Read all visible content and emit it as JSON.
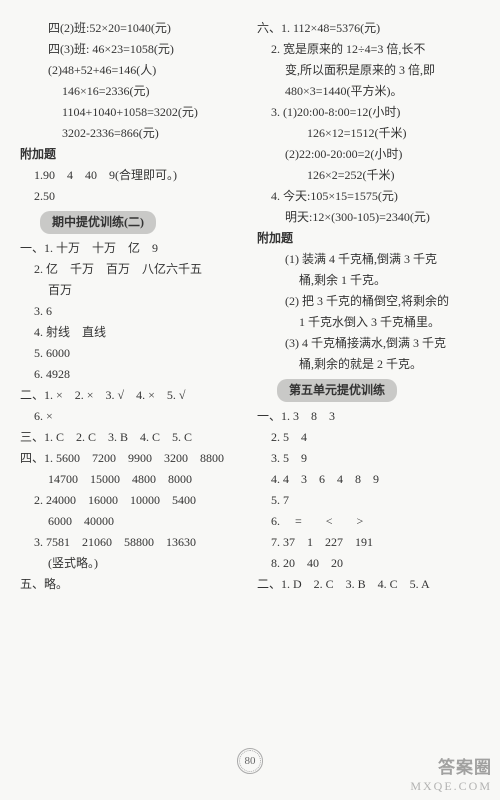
{
  "left": {
    "lines": [
      {
        "cls": "indent2",
        "t": "四(2)班:52×20=1040(元)"
      },
      {
        "cls": "indent2",
        "t": "四(3)班: 46×23=1058(元)"
      },
      {
        "cls": "indent2",
        "t": "(2)48+52+46=146(人)"
      },
      {
        "cls": "indent3",
        "t": "146×16=2336(元)"
      },
      {
        "cls": "indent3",
        "t": "1104+1040+1058=3202(元)"
      },
      {
        "cls": "indent3",
        "t": "3202-2336=866(元)"
      }
    ],
    "fujia_label": "附加题",
    "fujia": [
      {
        "cls": "indent1",
        "t": "1.90　4　40　9(合理即可。)"
      },
      {
        "cls": "indent1",
        "t": "2.50"
      }
    ],
    "section2": "期中提优训练(二)",
    "body2": [
      {
        "cls": "",
        "t": "一、1. 十万　十万　亿　9"
      },
      {
        "cls": "indent1",
        "t": "2. 亿　千万　百万　八亿六千五"
      },
      {
        "cls": "indent2",
        "t": "百万"
      },
      {
        "cls": "indent1",
        "t": "3. 6"
      },
      {
        "cls": "indent1",
        "t": "4. 射线　直线"
      },
      {
        "cls": "indent1",
        "t": "5. 6000"
      },
      {
        "cls": "indent1",
        "t": "6. 4928"
      },
      {
        "cls": "",
        "t": "二、1. ×　2. ×　3. √　4. ×　5. √"
      },
      {
        "cls": "indent1",
        "t": "6. ×"
      },
      {
        "cls": "",
        "t": "三、1. C　2. C　3. B　4. C　5. C"
      },
      {
        "cls": "",
        "t": "四、1. 5600　7200　9900　3200　8800"
      },
      {
        "cls": "indent2",
        "t": "14700　15000　4800　8000"
      },
      {
        "cls": "indent1",
        "t": "2. 24000　16000　10000　5400"
      },
      {
        "cls": "indent2",
        "t": "6000　40000"
      },
      {
        "cls": "indent1",
        "t": "3. 7581　21060　58800　13630"
      },
      {
        "cls": "indent2",
        "t": "(竖式略。)"
      },
      {
        "cls": "",
        "t": "五、略。"
      }
    ]
  },
  "right": {
    "lines": [
      {
        "cls": "",
        "t": "六、1. 112×48=5376(元)"
      },
      {
        "cls": "indent1",
        "t": "2. 宽是原来的 12÷4=3 倍,长不"
      },
      {
        "cls": "indent2",
        "t": "变,所以面积是原来的 3 倍,即"
      },
      {
        "cls": "indent2",
        "t": "480×3=1440(平方米)。"
      },
      {
        "cls": "indent1",
        "t": "3. (1)20:00-8:00=12(小时)"
      },
      {
        "cls": "indent35",
        "t": "126×12=1512(千米)"
      },
      {
        "cls": "indent2",
        "t": "(2)22:00-20:00=2(小时)"
      },
      {
        "cls": "indent35",
        "t": "126×2=252(千米)"
      },
      {
        "cls": "indent1",
        "t": "4. 今天:105×15=1575(元)"
      },
      {
        "cls": "indent2",
        "t": "明天:12×(300-105)=2340(元)"
      }
    ],
    "fujia_label": "附加题",
    "fujia": [
      {
        "cls": "indent2",
        "t": "(1) 装满 4 千克桶,倒满 3 千克"
      },
      {
        "cls": "indent3",
        "t": "桶,剩余 1 千克。"
      },
      {
        "cls": "indent2",
        "t": "(2) 把 3 千克的桶倒空,将剩余的"
      },
      {
        "cls": "indent3",
        "t": "1 千克水倒入 3 千克桶里。"
      },
      {
        "cls": "indent2",
        "t": "(3) 4 千克桶接满水,倒满 3 千克"
      },
      {
        "cls": "indent3",
        "t": "桶,剩余的就是 2 千克。"
      }
    ],
    "section5": "第五单元提优训练",
    "body5": [
      {
        "cls": "",
        "t": "一、1. 3　8　3"
      },
      {
        "cls": "indent1",
        "t": "2. 5　4"
      },
      {
        "cls": "indent1",
        "t": "3. 5　9"
      },
      {
        "cls": "indent1",
        "t": "4. 4　3　6　4　8　9"
      },
      {
        "cls": "indent1",
        "t": "5. 7"
      },
      {
        "cls": "indent1",
        "t": "6. 　=　　<　　>"
      },
      {
        "cls": "indent1",
        "t": "7. 37　1　227　191"
      },
      {
        "cls": "indent1",
        "t": "8. 20　40　20"
      },
      {
        "cls": "",
        "t": "二、1. D　2. C　3. B　4. C　5. A"
      }
    ]
  },
  "pageNumber": "80",
  "watermark": {
    "top": "答案圈",
    "bot": "MXQE.COM"
  }
}
